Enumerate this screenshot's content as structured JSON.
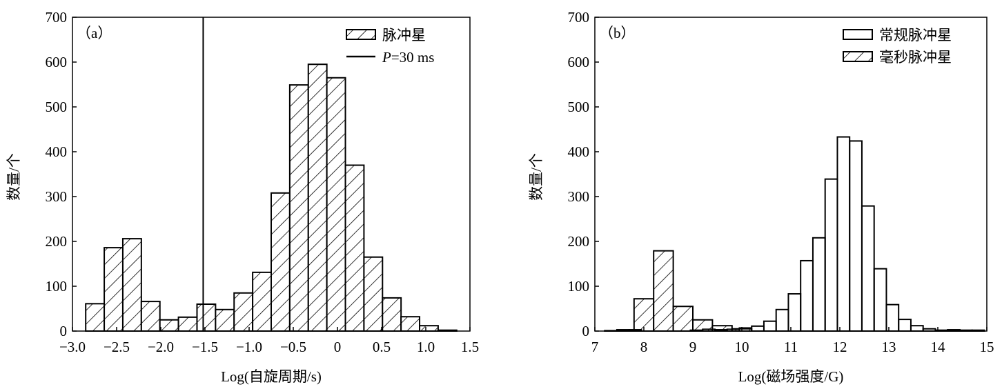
{
  "chart_data": [
    {
      "type": "bar",
      "panel_label": "（a）",
      "xlabel": "Log(自旋周期/s)",
      "ylabel": "数量/个",
      "xlim": [
        -3.0,
        1.5
      ],
      "ylim": [
        0,
        700
      ],
      "xticks": [
        -3.0,
        -2.5,
        -2.0,
        -1.5,
        -1.0,
        -0.5,
        0,
        0.5,
        1.0,
        1.5
      ],
      "xtick_labels": [
        "−3.0",
        "−2.5",
        "−2.0",
        "−1.5",
        "−1.0",
        "−0.5",
        "0",
        "0.5",
        "1.0",
        "1.5"
      ],
      "yticks": [
        0,
        100,
        200,
        300,
        400,
        500,
        600,
        700
      ],
      "ytick_labels": [
        "0",
        "100",
        "200",
        "300",
        "400",
        "500",
        "600",
        "700"
      ],
      "legend_position": "top-right",
      "series": [
        {
          "name": "脉冲星",
          "style": "hatched",
          "bin_start": -2.85,
          "bin_width": 0.21,
          "values": [
            61,
            186,
            206,
            66,
            25,
            31,
            60,
            48,
            85,
            131,
            308,
            549,
            595,
            565,
            370,
            165,
            74,
            32,
            12,
            2
          ]
        }
      ],
      "vline": {
        "name": "P=30 ms",
        "label_italic": "P",
        "label_rest": "=30 ms",
        "x": -1.52
      }
    },
    {
      "type": "bar",
      "panel_label": "（b）",
      "xlabel": "Log(磁场强度/G)",
      "ylabel": "数量/个",
      "xlim": [
        7,
        15
      ],
      "ylim": [
        0,
        700
      ],
      "xticks": [
        7,
        8,
        9,
        10,
        11,
        12,
        13,
        14,
        15
      ],
      "xtick_labels": [
        "7",
        "8",
        "9",
        "10",
        "11",
        "12",
        "13",
        "14",
        "15"
      ],
      "yticks": [
        0,
        100,
        200,
        300,
        400,
        500,
        600,
        700
      ],
      "ytick_labels": [
        "0",
        "100",
        "200",
        "300",
        "400",
        "500",
        "600",
        "700"
      ],
      "legend_position": "top-right",
      "series": [
        {
          "name": "常规脉冲星",
          "style": "outline",
          "bin_start": 7.2,
          "bin_width": 0.25,
          "values": [
            1,
            3,
            3,
            0,
            0,
            0,
            0,
            2,
            4,
            3,
            4,
            7,
            11,
            22,
            48,
            83,
            157,
            208,
            339,
            433,
            424,
            279,
            139,
            59,
            26,
            12,
            5,
            2,
            3,
            2,
            2
          ]
        },
        {
          "name": "毫秒脉冲星",
          "style": "hatched",
          "bin_start": 7.8,
          "bin_width": 0.4,
          "values": [
            72,
            179,
            55,
            25,
            12,
            5
          ]
        }
      ]
    }
  ]
}
